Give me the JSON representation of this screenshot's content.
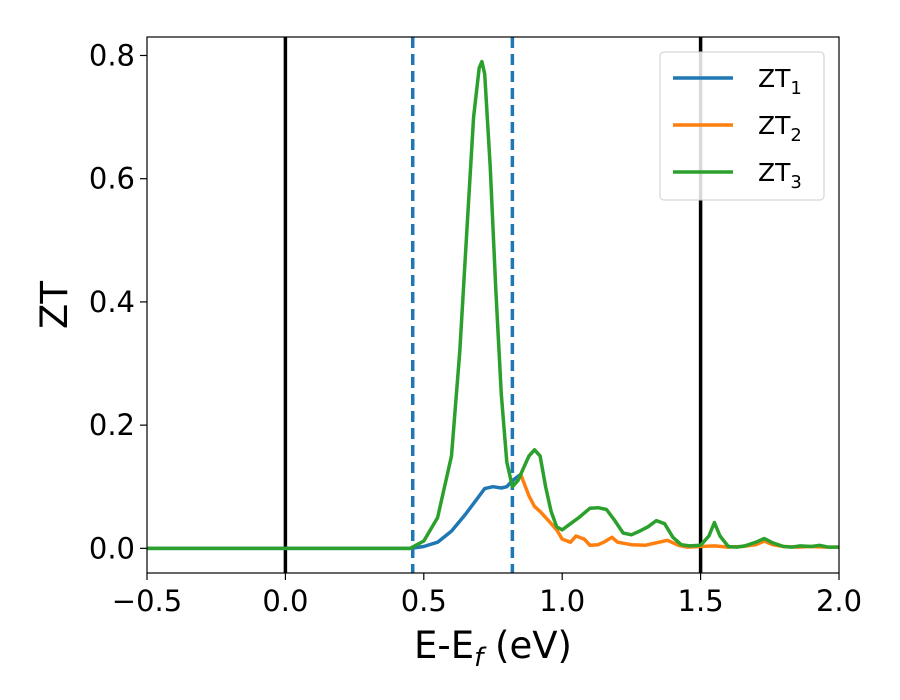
{
  "chart_data": {
    "type": "line",
    "xlabel": "E-E",
    "xlabel_sub": "f",
    "xlabel_unit": " (eV)",
    "ylabel": "ZT",
    "xlim": [
      -0.5,
      2.0
    ],
    "ylim": [
      -0.04,
      0.83
    ],
    "xticks": [
      -0.5,
      0.0,
      0.5,
      1.0,
      1.5,
      2.0
    ],
    "xtick_labels": [
      "−0.5",
      "0.0",
      "0.5",
      "1.0",
      "1.5",
      "2.0"
    ],
    "yticks": [
      0.0,
      0.2,
      0.4,
      0.6,
      0.8
    ],
    "ytick_labels": [
      "0.0",
      "0.2",
      "0.4",
      "0.6",
      "0.8"
    ],
    "grid": false,
    "legend_position": "upper right",
    "vlines_solid": [
      0.0,
      1.5
    ],
    "vlines_dashed": [
      0.46,
      0.82
    ],
    "vline_solid_color": "#000000",
    "vline_dashed_color": "#1f77b4",
    "series": [
      {
        "name": "ZT",
        "sub": "1",
        "color": "#1f77b4",
        "x": [
          -0.5,
          0.0,
          0.4,
          0.45,
          0.5,
          0.55,
          0.6,
          0.65,
          0.7,
          0.72,
          0.75,
          0.78,
          0.8,
          0.82,
          0.85
        ],
        "y": [
          0.0,
          0.0,
          0.0,
          0.0,
          0.003,
          0.01,
          0.028,
          0.055,
          0.085,
          0.097,
          0.1,
          0.098,
          0.1,
          0.11,
          0.12
        ]
      },
      {
        "name": "ZT",
        "sub": "2",
        "color": "#ff7f0e",
        "x": [
          0.85,
          0.88,
          0.9,
          0.92,
          0.95,
          0.98,
          1.0,
          1.03,
          1.05,
          1.08,
          1.1,
          1.13,
          1.15,
          1.18,
          1.2,
          1.25,
          1.3,
          1.35,
          1.38,
          1.42,
          1.45,
          1.5,
          1.55,
          1.6,
          1.65,
          1.7,
          1.73,
          1.76,
          1.8,
          1.85,
          1.9,
          1.95,
          2.0
        ],
        "y": [
          0.12,
          0.085,
          0.068,
          0.06,
          0.045,
          0.03,
          0.015,
          0.01,
          0.02,
          0.015,
          0.005,
          0.006,
          0.01,
          0.018,
          0.01,
          0.006,
          0.005,
          0.01,
          0.013,
          0.005,
          0.002,
          0.003,
          0.004,
          0.002,
          0.003,
          0.006,
          0.012,
          0.006,
          0.003,
          0.002,
          0.003,
          0.002,
          0.002
        ]
      },
      {
        "name": "ZT",
        "sub": "3",
        "color": "#2ca02c",
        "x": [
          -0.5,
          0.0,
          0.4,
          0.45,
          0.5,
          0.55,
          0.6,
          0.63,
          0.66,
          0.68,
          0.7,
          0.71,
          0.72,
          0.74,
          0.76,
          0.78,
          0.8,
          0.82,
          0.84,
          0.86,
          0.88,
          0.9,
          0.92,
          0.94,
          0.96,
          0.98,
          1.0,
          1.03,
          1.06,
          1.1,
          1.13,
          1.16,
          1.19,
          1.22,
          1.25,
          1.28,
          1.31,
          1.34,
          1.37,
          1.4,
          1.43,
          1.46,
          1.5,
          1.53,
          1.55,
          1.57,
          1.6,
          1.63,
          1.66,
          1.7,
          1.73,
          1.76,
          1.8,
          1.83,
          1.86,
          1.9,
          1.93,
          1.96,
          2.0
        ],
        "y": [
          0.0,
          0.0,
          0.0,
          0.0,
          0.012,
          0.05,
          0.15,
          0.32,
          0.55,
          0.7,
          0.78,
          0.79,
          0.77,
          0.62,
          0.42,
          0.25,
          0.14,
          0.1,
          0.11,
          0.13,
          0.15,
          0.16,
          0.15,
          0.1,
          0.06,
          0.035,
          0.03,
          0.04,
          0.05,
          0.065,
          0.066,
          0.063,
          0.045,
          0.025,
          0.022,
          0.028,
          0.035,
          0.045,
          0.04,
          0.018,
          0.006,
          0.004,
          0.005,
          0.02,
          0.042,
          0.02,
          0.003,
          0.002,
          0.004,
          0.01,
          0.016,
          0.009,
          0.003,
          0.002,
          0.004,
          0.003,
          0.005,
          0.002,
          0.002
        ]
      }
    ]
  }
}
